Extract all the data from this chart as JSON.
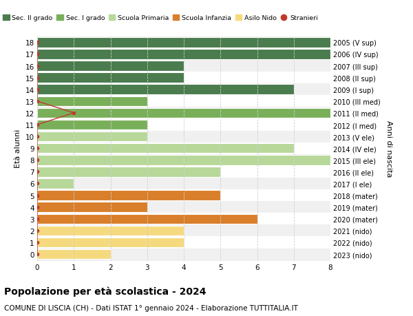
{
  "ages": [
    18,
    17,
    16,
    15,
    14,
    13,
    12,
    11,
    10,
    9,
    8,
    7,
    6,
    5,
    4,
    3,
    2,
    1,
    0
  ],
  "years": [
    "2005 (V sup)",
    "2006 (IV sup)",
    "2007 (III sup)",
    "2008 (II sup)",
    "2009 (I sup)",
    "2010 (III med)",
    "2011 (II med)",
    "2012 (I med)",
    "2013 (V ele)",
    "2014 (IV ele)",
    "2015 (III ele)",
    "2016 (II ele)",
    "2017 (I ele)",
    "2018 (mater)",
    "2019 (mater)",
    "2020 (mater)",
    "2021 (nido)",
    "2022 (nido)",
    "2023 (nido)"
  ],
  "values": [
    8,
    8,
    4,
    4,
    7,
    3,
    8,
    3,
    3,
    7,
    8,
    5,
    1,
    5,
    3,
    6,
    4,
    4,
    2
  ],
  "colors": [
    "#4a7c4e",
    "#4a7c4e",
    "#4a7c4e",
    "#4a7c4e",
    "#4a7c4e",
    "#7aaf5a",
    "#7aaf5a",
    "#7aaf5a",
    "#b8d89a",
    "#b8d89a",
    "#b8d89a",
    "#b8d89a",
    "#b8d89a",
    "#d97e2a",
    "#d97e2a",
    "#d97e2a",
    "#f5d97e",
    "#f5d97e",
    "#f5d97e"
  ],
  "stranieri_values_by_age": {
    "18": 0,
    "17": 0,
    "16": 0,
    "15": 0,
    "14": 0,
    "13": 0,
    "12": 1,
    "11": 0,
    "10": 0,
    "9": 0,
    "8": 0,
    "7": 0,
    "6": 0,
    "5": 0,
    "4": 0,
    "3": 0,
    "2": 0,
    "1": 0,
    "0": 0
  },
  "legend_labels": [
    "Sec. II grado",
    "Sec. I grado",
    "Scuola Primaria",
    "Scuola Infanzia",
    "Asilo Nido",
    "Stranieri"
  ],
  "legend_colors": [
    "#4a7c4e",
    "#7aaf5a",
    "#b8d89a",
    "#d97e2a",
    "#f5d97e",
    "#c0392b"
  ],
  "stranieri_color": "#c0392b",
  "title": "Popolazione per età scolastica - 2024",
  "subtitle": "COMUNE DI LISCIA (CH) - Dati ISTAT 1° gennaio 2024 - Elaborazione TUTTITALIA.IT",
  "ylabel": "Età alunni",
  "ylabel_right": "Anni di nascita",
  "xlim": [
    0,
    8
  ],
  "background_color": "#ffffff",
  "plot_bg_color": "#ffffff",
  "bar_height": 0.85,
  "grid_color": "#d0d0d0",
  "row_bg_even": "#f0f0f0",
  "row_bg_odd": "#ffffff"
}
